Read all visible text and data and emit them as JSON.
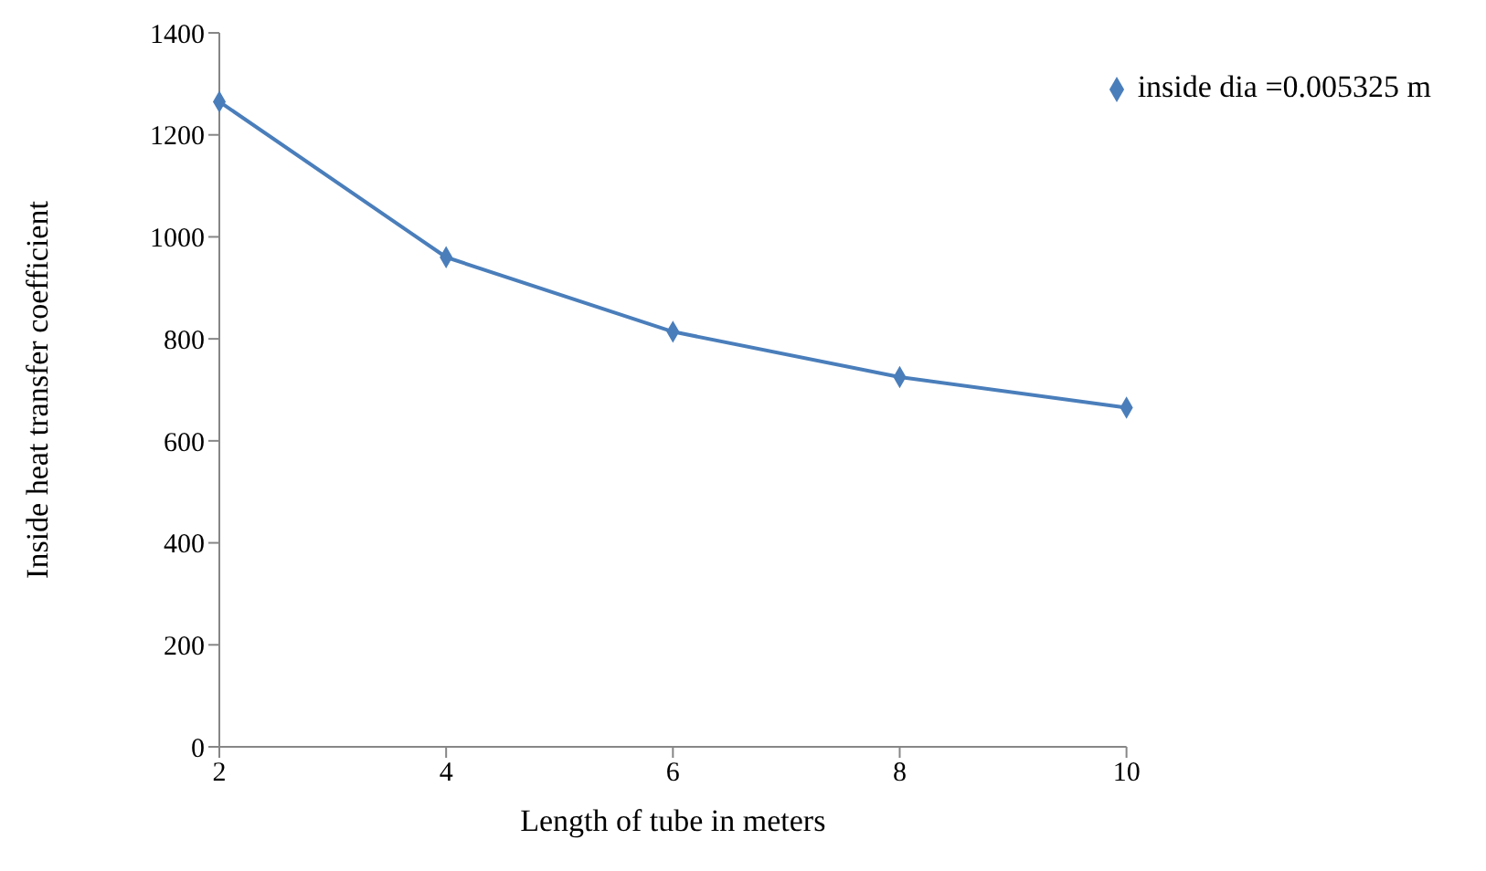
{
  "chart_data": {
    "type": "line",
    "xlabel": "Length of tube in meters",
    "ylabel": "Inside heat transfer coefficient",
    "categories": [
      "2",
      "4",
      "6",
      "8",
      "10"
    ],
    "series": [
      {
        "name": "inside dia =0.005325 m",
        "color": "#4a7ebb",
        "values": [
          1265,
          960,
          814,
          725,
          665
        ]
      }
    ],
    "ylim": [
      0,
      1400
    ],
    "yticks": [
      0,
      200,
      400,
      600,
      800,
      1000,
      1200,
      1400
    ],
    "grid": false,
    "legend": "top right",
    "marker": "diamond",
    "line_style": "solid"
  }
}
